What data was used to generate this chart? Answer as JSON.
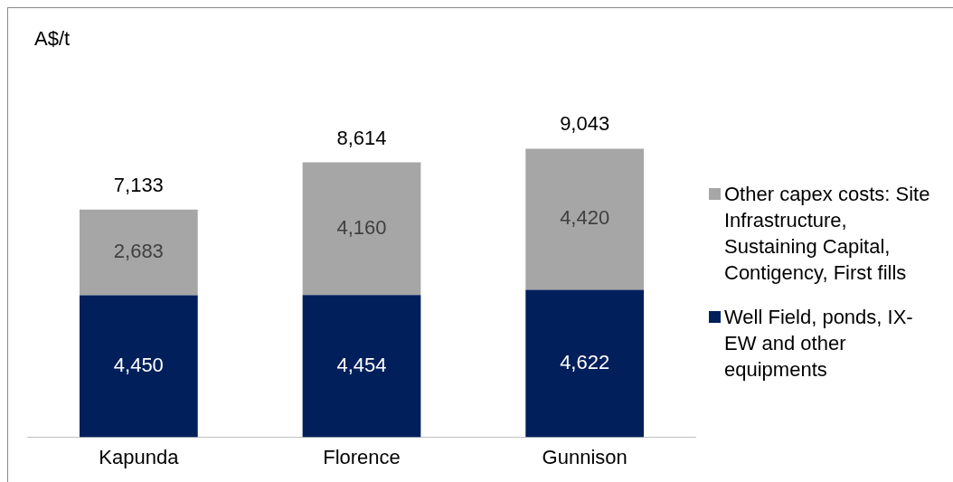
{
  "chart_data": {
    "type": "bar",
    "stacked": true,
    "ylabel": "A$/t",
    "categories": [
      "Kapunda",
      "Florence",
      "Gunnison"
    ],
    "series": [
      {
        "name": "Well Field, ponds, IX-EW and other equipments",
        "color": "#001f5b",
        "values": [
          4450,
          4454,
          4622
        ],
        "value_labels": [
          "4,450",
          "4,454",
          "4,622"
        ]
      },
      {
        "name": "Other capex costs: Site Infrastructure, Sustaining Capital, Contigency, First fills",
        "color": "#a6a6a6",
        "values": [
          2683,
          4160,
          4420
        ],
        "value_labels": [
          "2,683",
          "4,160",
          "4,420"
        ]
      }
    ],
    "totals": [
      "7,133",
      "8,614",
      "9,043"
    ],
    "legend": "right"
  }
}
